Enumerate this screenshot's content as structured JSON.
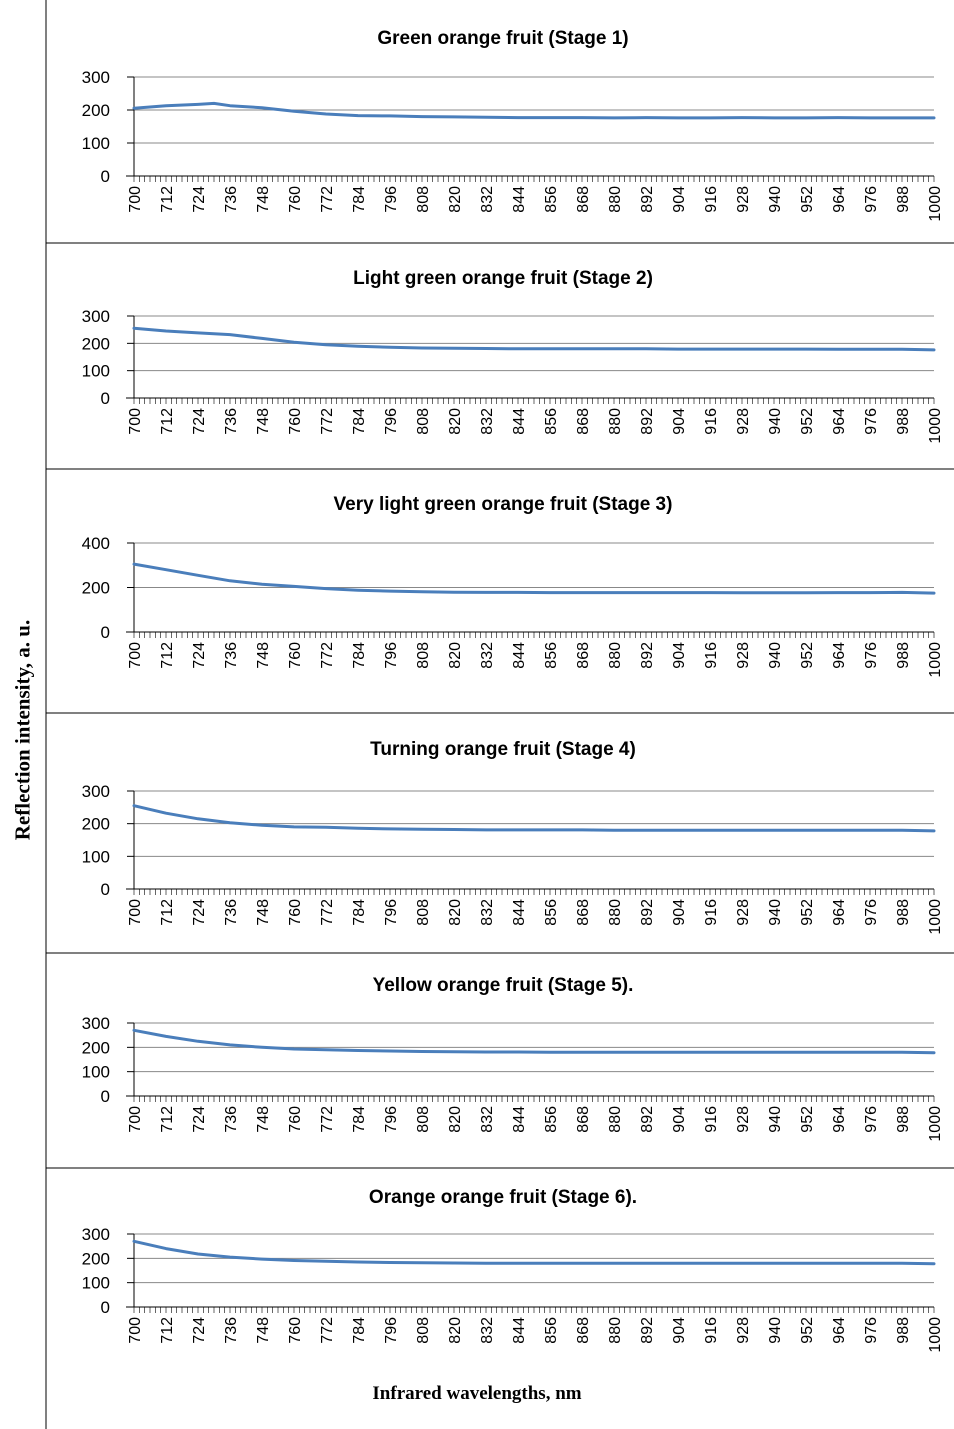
{
  "figure": {
    "ylabel": "Reflection intensity, a. u.",
    "xlabel": "Infrared wavelengths, nm"
  },
  "colors": {
    "line": "#4a7ebb",
    "grid": "#888888",
    "axis": "#000000",
    "frame": "#000000"
  },
  "chart_data": [
    {
      "type": "line",
      "title": "Green orange fruit (Stage 1)",
      "x_ticks": [
        700,
        712,
        724,
        736,
        748,
        760,
        772,
        784,
        796,
        808,
        820,
        832,
        844,
        856,
        868,
        880,
        892,
        904,
        916,
        928,
        940,
        952,
        964,
        976,
        988,
        1000
      ],
      "ylim": [
        0,
        300
      ],
      "y_ticks": [
        0,
        100,
        200,
        300
      ],
      "grid": true,
      "series": [
        {
          "x": [
            700,
            712,
            724,
            730,
            736,
            748,
            760,
            772,
            784,
            796,
            808,
            820,
            832,
            844,
            856,
            868,
            880,
            892,
            904,
            916,
            928,
            940,
            952,
            964,
            976,
            988,
            1000
          ],
          "y": [
            205,
            213,
            217,
            220,
            213,
            207,
            196,
            188,
            183,
            182,
            180,
            179,
            178,
            177,
            177,
            177,
            176,
            177,
            176,
            176,
            177,
            176,
            176,
            177,
            176,
            176,
            176
          ]
        }
      ]
    },
    {
      "type": "line",
      "title": "Light  green orange fruit (Stage 2)",
      "x_ticks": [
        700,
        712,
        724,
        736,
        748,
        760,
        772,
        784,
        796,
        808,
        820,
        832,
        844,
        856,
        868,
        880,
        892,
        904,
        916,
        928,
        940,
        952,
        964,
        976,
        988,
        1000
      ],
      "ylim": [
        0,
        300
      ],
      "y_ticks": [
        0,
        100,
        200,
        300
      ],
      "grid": true,
      "series": [
        {
          "x": [
            700,
            712,
            724,
            736,
            748,
            760,
            772,
            784,
            796,
            808,
            820,
            832,
            844,
            856,
            868,
            880,
            892,
            904,
            916,
            928,
            940,
            952,
            964,
            976,
            988,
            1000
          ],
          "y": [
            255,
            245,
            238,
            232,
            218,
            204,
            195,
            189,
            186,
            183,
            182,
            181,
            180,
            180,
            180,
            180,
            180,
            179,
            179,
            179,
            179,
            179,
            178,
            178,
            178,
            176
          ]
        }
      ]
    },
    {
      "type": "line",
      "title": "Very light  green orange fruit (Stage 3)",
      "x_ticks": [
        700,
        712,
        724,
        736,
        748,
        760,
        772,
        784,
        796,
        808,
        820,
        832,
        844,
        856,
        868,
        880,
        892,
        904,
        916,
        928,
        940,
        952,
        964,
        976,
        988,
        1000
      ],
      "ylim": [
        0,
        400
      ],
      "y_ticks": [
        0,
        200,
        400
      ],
      "grid": true,
      "series": [
        {
          "x": [
            700,
            712,
            724,
            736,
            748,
            760,
            772,
            784,
            796,
            808,
            820,
            832,
            844,
            856,
            868,
            880,
            892,
            904,
            916,
            928,
            940,
            952,
            964,
            976,
            988,
            1000
          ],
          "y": [
            305,
            280,
            255,
            230,
            215,
            205,
            195,
            188,
            184,
            181,
            179,
            178,
            178,
            177,
            177,
            177,
            177,
            177,
            177,
            176,
            176,
            176,
            177,
            177,
            178,
            175
          ]
        }
      ]
    },
    {
      "type": "line",
      "title": "Turning orange fruit (Stage 4)",
      "x_ticks": [
        700,
        712,
        724,
        736,
        748,
        760,
        772,
        784,
        796,
        808,
        820,
        832,
        844,
        856,
        868,
        880,
        892,
        904,
        916,
        928,
        940,
        952,
        964,
        976,
        988,
        1000
      ],
      "ylim": [
        0,
        300
      ],
      "y_ticks": [
        0,
        100,
        200,
        300
      ],
      "grid": true,
      "series": [
        {
          "x": [
            700,
            712,
            724,
            736,
            748,
            760,
            772,
            784,
            796,
            808,
            820,
            832,
            844,
            856,
            868,
            880,
            892,
            904,
            916,
            928,
            940,
            952,
            964,
            976,
            988,
            1000
          ],
          "y": [
            255,
            232,
            215,
            203,
            195,
            190,
            189,
            186,
            184,
            183,
            182,
            181,
            181,
            181,
            181,
            180,
            180,
            180,
            180,
            180,
            180,
            180,
            180,
            180,
            180,
            178
          ]
        }
      ]
    },
    {
      "type": "line",
      "title": "Yellow orange fruit (Stage 5).",
      "x_ticks": [
        700,
        712,
        724,
        736,
        748,
        760,
        772,
        784,
        796,
        808,
        820,
        832,
        844,
        856,
        868,
        880,
        892,
        904,
        916,
        928,
        940,
        952,
        964,
        976,
        988,
        1000
      ],
      "ylim": [
        0,
        300
      ],
      "y_ticks": [
        0,
        100,
        200,
        300
      ],
      "grid": true,
      "series": [
        {
          "x": [
            700,
            712,
            724,
            736,
            748,
            760,
            772,
            784,
            796,
            808,
            820,
            832,
            844,
            856,
            868,
            880,
            892,
            904,
            916,
            928,
            940,
            952,
            964,
            976,
            988,
            1000
          ],
          "y": [
            270,
            245,
            225,
            210,
            200,
            193,
            190,
            187,
            185,
            183,
            182,
            181,
            181,
            180,
            180,
            180,
            180,
            180,
            180,
            180,
            180,
            180,
            180,
            180,
            180,
            178
          ]
        }
      ]
    },
    {
      "type": "line",
      "title": "Orange  orange fruit (Stage 6).",
      "x_ticks": [
        700,
        712,
        724,
        736,
        748,
        760,
        772,
        784,
        796,
        808,
        820,
        832,
        844,
        856,
        868,
        880,
        892,
        904,
        916,
        928,
        940,
        952,
        964,
        976,
        988,
        1000
      ],
      "ylim": [
        0,
        300
      ],
      "y_ticks": [
        0,
        100,
        200,
        300
      ],
      "grid": true,
      "series": [
        {
          "x": [
            700,
            712,
            724,
            736,
            748,
            760,
            772,
            784,
            796,
            808,
            820,
            832,
            844,
            856,
            868,
            880,
            892,
            904,
            916,
            928,
            940,
            952,
            964,
            976,
            988,
            1000
          ],
          "y": [
            270,
            240,
            218,
            205,
            197,
            191,
            188,
            185,
            183,
            182,
            181,
            180,
            180,
            180,
            180,
            180,
            180,
            180,
            180,
            180,
            180,
            180,
            180,
            180,
            180,
            178
          ]
        }
      ]
    }
  ]
}
